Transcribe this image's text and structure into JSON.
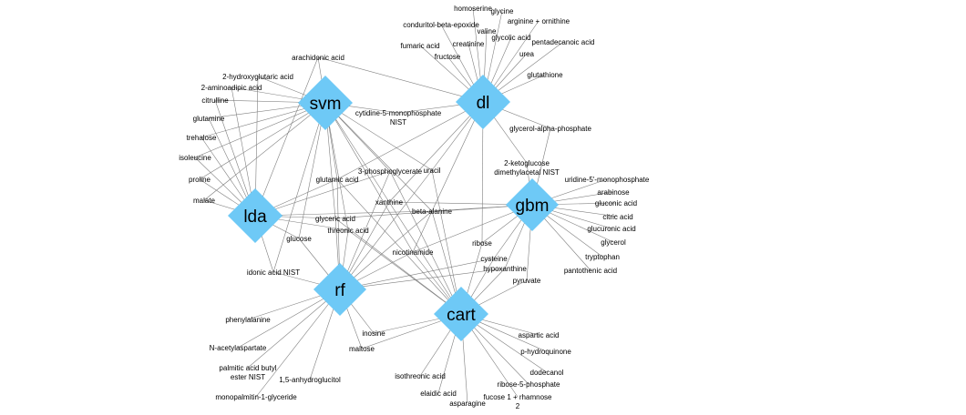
{
  "colors": {
    "hub": "#6ec9f6",
    "edge": "#7f7f7f",
    "text": "#000000"
  },
  "hubs": [
    {
      "id": "svm",
      "label": "svm"
    },
    {
      "id": "dl",
      "label": "dl"
    },
    {
      "id": "lda",
      "label": "lda"
    },
    {
      "id": "gbm",
      "label": "gbm"
    },
    {
      "id": "rf",
      "label": "rf"
    },
    {
      "id": "cart",
      "label": "cart"
    }
  ],
  "features": [
    {
      "id": "homoserine",
      "label": "homoserine",
      "links": [
        "dl"
      ]
    },
    {
      "id": "glycine",
      "label": "glycine",
      "links": [
        "dl"
      ]
    },
    {
      "id": "conduritol",
      "label": "conduritol-beta-epoxide",
      "links": [
        "dl"
      ]
    },
    {
      "id": "arginine",
      "label": "arginine + ornithine",
      "links": [
        "dl"
      ]
    },
    {
      "id": "valine",
      "label": "valine",
      "links": [
        "dl"
      ]
    },
    {
      "id": "glycolic",
      "label": "glycolic acid",
      "links": [
        "dl"
      ]
    },
    {
      "id": "creatinine",
      "label": "creatinine",
      "links": [
        "dl"
      ]
    },
    {
      "id": "fumaric",
      "label": "fumaric acid",
      "links": [
        "dl"
      ]
    },
    {
      "id": "pentadecanoic",
      "label": "pentadecanoic acid",
      "links": [
        "dl"
      ]
    },
    {
      "id": "fructose",
      "label": "fructose",
      "links": [
        "dl"
      ]
    },
    {
      "id": "urea",
      "label": "urea",
      "links": [
        "dl"
      ]
    },
    {
      "id": "arachidonic",
      "label": "arachidonic acid",
      "links": [
        "svm",
        "dl",
        "lda"
      ]
    },
    {
      "id": "glutathione",
      "label": "glutathione",
      "links": [
        "dl"
      ]
    },
    {
      "id": "hydroxyglutaric",
      "label": "2-hydroxyglutaric acid",
      "links": [
        "svm",
        "lda"
      ]
    },
    {
      "id": "aminoadipic",
      "label": "2-aminoadipic acid",
      "links": [
        "svm",
        "lda"
      ]
    },
    {
      "id": "citrulline",
      "label": "citrulline",
      "links": [
        "svm",
        "lda"
      ]
    },
    {
      "id": "glutamine",
      "label": "glutamine",
      "links": [
        "svm",
        "lda"
      ]
    },
    {
      "id": "trehalose",
      "label": "trehalose",
      "links": [
        "svm",
        "lda"
      ]
    },
    {
      "id": "isoleucine",
      "label": "isoleucine",
      "links": [
        "svm",
        "lda"
      ]
    },
    {
      "id": "proline",
      "label": "proline",
      "links": [
        "svm",
        "lda"
      ]
    },
    {
      "id": "malate",
      "label": "malate",
      "links": [
        "svm",
        "lda"
      ]
    },
    {
      "id": "cytidine",
      "label": "cytidine-5-monophosphate\nNIST",
      "links": [
        "svm",
        "dl"
      ]
    },
    {
      "id": "glycerolphosphate",
      "label": "glycerol-alpha-phosphate",
      "links": [
        "dl",
        "gbm"
      ]
    },
    {
      "id": "ketogulose",
      "label": "2-ketoglucose\ndimethylacetal NIST",
      "links": [
        "dl",
        "gbm"
      ]
    },
    {
      "id": "uridine",
      "label": "uridine-5'-monophosphate",
      "links": [
        "gbm"
      ]
    },
    {
      "id": "arabinose",
      "label": "arabinose",
      "links": [
        "gbm"
      ]
    },
    {
      "id": "gluconic",
      "label": "gluconic acid",
      "links": [
        "gbm"
      ]
    },
    {
      "id": "citric",
      "label": "citric acid",
      "links": [
        "gbm"
      ]
    },
    {
      "id": "glucuronic",
      "label": "glucuronic acid",
      "links": [
        "gbm"
      ]
    },
    {
      "id": "glycerol",
      "label": "glycerol",
      "links": [
        "gbm"
      ]
    },
    {
      "id": "tryptophan",
      "label": "tryptophan",
      "links": [
        "gbm"
      ]
    },
    {
      "id": "pantothenic",
      "label": "pantothenic acid",
      "links": [
        "gbm"
      ]
    },
    {
      "id": "phosphoglycerate",
      "label": "3-phosphoglycerate",
      "links": [
        "svm",
        "lda",
        "rf",
        "cart"
      ]
    },
    {
      "id": "uracil",
      "label": "uracil",
      "links": [
        "dl",
        "svm",
        "rf",
        "cart"
      ]
    },
    {
      "id": "glutamic",
      "label": "glutamic acid",
      "links": [
        "svm",
        "lda",
        "rf",
        "cart",
        "dl"
      ]
    },
    {
      "id": "xanthine",
      "label": "xanthine",
      "links": [
        "svm",
        "dl",
        "rf",
        "cart",
        "gbm"
      ]
    },
    {
      "id": "betaalanine",
      "label": "beta-alanine",
      "links": [
        "svm",
        "lda",
        "rf",
        "cart",
        "gbm"
      ]
    },
    {
      "id": "glyceric",
      "label": "glyceric acid",
      "links": [
        "svm",
        "lda",
        "rf",
        "gbm",
        "cart"
      ]
    },
    {
      "id": "threonic",
      "label": "threonic acid",
      "links": [
        "svm",
        "lda",
        "rf",
        "cart"
      ]
    },
    {
      "id": "glucose",
      "label": "glucose",
      "links": [
        "svm",
        "lda",
        "rf"
      ]
    },
    {
      "id": "nicotinamide",
      "label": "nicotinamide",
      "links": [
        "svm",
        "dl",
        "rf",
        "cart",
        "gbm"
      ]
    },
    {
      "id": "ribose",
      "label": "ribose",
      "links": [
        "dl",
        "cart",
        "gbm"
      ]
    },
    {
      "id": "idonic",
      "label": "idonic acid NIST",
      "links": [
        "svm",
        "lda",
        "rf"
      ]
    },
    {
      "id": "cysteine",
      "label": "cysteine",
      "links": [
        "gbm",
        "rf",
        "cart"
      ]
    },
    {
      "id": "hypoxanthine",
      "label": "hypoxanthine",
      "links": [
        "gbm",
        "rf",
        "cart"
      ]
    },
    {
      "id": "pyruvate",
      "label": "pyruvate",
      "links": [
        "gbm",
        "cart"
      ]
    },
    {
      "id": "phenylalanine",
      "label": "phenylalanine",
      "links": [
        "rf"
      ]
    },
    {
      "id": "acetylaspartate",
      "label": "N-acetylaspartate",
      "links": [
        "rf"
      ]
    },
    {
      "id": "palmitic",
      "label": "palmitic acid butyl\nester NIST",
      "links": [
        "rf"
      ]
    },
    {
      "id": "anhydroglucitol",
      "label": "1,5-anhydroglucitol",
      "links": [
        "rf"
      ]
    },
    {
      "id": "monopalmitin",
      "label": "monopalmitin-1-glyceride",
      "links": [
        "rf"
      ]
    },
    {
      "id": "inosine",
      "label": "inosine",
      "links": [
        "rf",
        "cart"
      ]
    },
    {
      "id": "maltose",
      "label": "maltose",
      "links": [
        "rf",
        "cart"
      ]
    },
    {
      "id": "aspartic",
      "label": "aspartic acid",
      "links": [
        "cart"
      ]
    },
    {
      "id": "hydroquinone",
      "label": "p-hydroquinone",
      "links": [
        "cart"
      ]
    },
    {
      "id": "dodecanol",
      "label": "dodecanol",
      "links": [
        "cart"
      ]
    },
    {
      "id": "ribosephosphate",
      "label": "ribose-5-phosphate",
      "links": [
        "cart"
      ]
    },
    {
      "id": "isothreonic",
      "label": "isothreonic acid",
      "links": [
        "cart"
      ]
    },
    {
      "id": "elaidic",
      "label": "elaidic acid",
      "links": [
        "cart"
      ]
    },
    {
      "id": "fucose",
      "label": "fucose 1 + rhamnose\n2",
      "links": [
        "cart"
      ]
    },
    {
      "id": "asparagine",
      "label": "asparagine",
      "links": [
        "cart"
      ]
    }
  ]
}
